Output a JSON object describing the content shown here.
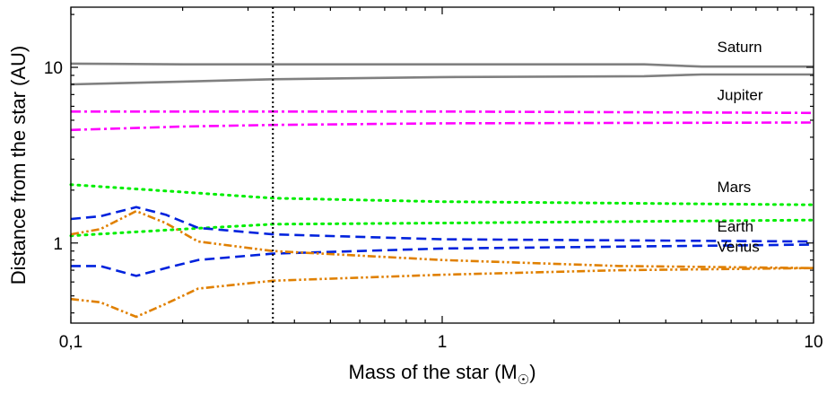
{
  "chart_data": {
    "type": "line",
    "title": "",
    "xlabel": "Mass of the star (M",
    "xlabel_sub": "☉",
    "xlabel_close": ")",
    "ylabel": "Distance from the star (AU)",
    "xscale": "log",
    "yscale": "log",
    "xlim": [
      0.1,
      10
    ],
    "ylim": [
      0.35,
      22
    ],
    "x_ticks": [
      {
        "value": 0.1,
        "label": "0,1"
      },
      {
        "value": 1,
        "label": "1"
      },
      {
        "value": 10,
        "label": "10"
      }
    ],
    "y_ticks": [
      {
        "value": 1,
        "label": "1"
      },
      {
        "value": 10,
        "label": "10"
      }
    ],
    "grid": false,
    "vertical_line": {
      "x": 0.35,
      "style": "dotted",
      "color": "#000000"
    },
    "series": [
      {
        "name": "Saturn",
        "bound": "outer",
        "color": "#808080",
        "dash": "solid",
        "points": [
          [
            0.1,
            10.5
          ],
          [
            0.2,
            10.4
          ],
          [
            1,
            10.4
          ],
          [
            3.5,
            10.4
          ],
          [
            5,
            10.1
          ],
          [
            10,
            10.1
          ]
        ]
      },
      {
        "name": "Saturn",
        "bound": "inner",
        "color": "#808080",
        "dash": "solid",
        "points": [
          [
            0.1,
            8.0
          ],
          [
            0.2,
            8.3
          ],
          [
            0.35,
            8.55
          ],
          [
            1,
            8.8
          ],
          [
            3.5,
            8.9
          ],
          [
            5,
            9.1
          ],
          [
            10,
            9.1
          ]
        ]
      },
      {
        "name": "Jupiter",
        "bound": "outer",
        "color": "#ff00ff",
        "dash": "dashdot",
        "points": [
          [
            0.1,
            5.6
          ],
          [
            1,
            5.6
          ],
          [
            10,
            5.5
          ]
        ]
      },
      {
        "name": "Jupiter",
        "bound": "inner",
        "color": "#ff00ff",
        "dash": "dashdot",
        "points": [
          [
            0.1,
            4.4
          ],
          [
            0.2,
            4.6
          ],
          [
            0.35,
            4.7
          ],
          [
            1,
            4.8
          ],
          [
            10,
            4.85
          ]
        ]
      },
      {
        "name": "Mars",
        "bound": "outer",
        "color": "#00ee00",
        "dash": "dotted",
        "points": [
          [
            0.1,
            2.15
          ],
          [
            0.2,
            1.95
          ],
          [
            0.35,
            1.8
          ],
          [
            1,
            1.72
          ],
          [
            10,
            1.65
          ]
        ]
      },
      {
        "name": "Mars",
        "bound": "inner",
        "color": "#00ee00",
        "dash": "dotted",
        "points": [
          [
            0.1,
            1.1
          ],
          [
            0.2,
            1.2
          ],
          [
            0.35,
            1.28
          ],
          [
            1,
            1.3
          ],
          [
            10,
            1.35
          ]
        ]
      },
      {
        "name": "Earth",
        "bound": "outer",
        "color": "#0022dd",
        "dash": "dashed",
        "points": [
          [
            0.1,
            1.37
          ],
          [
            0.12,
            1.42
          ],
          [
            0.15,
            1.6
          ],
          [
            0.18,
            1.45
          ],
          [
            0.22,
            1.22
          ],
          [
            0.35,
            1.12
          ],
          [
            1,
            1.05
          ],
          [
            10,
            1.02
          ]
        ]
      },
      {
        "name": "Earth",
        "bound": "inner",
        "color": "#0022dd",
        "dash": "dashed",
        "points": [
          [
            0.1,
            0.74
          ],
          [
            0.12,
            0.74
          ],
          [
            0.15,
            0.65
          ],
          [
            0.18,
            0.72
          ],
          [
            0.22,
            0.8
          ],
          [
            0.35,
            0.87
          ],
          [
            1,
            0.93
          ],
          [
            10,
            0.98
          ]
        ]
      },
      {
        "name": "Venus",
        "bound": "outer",
        "color": "#e08000",
        "dash": "dashdotdot",
        "points": [
          [
            0.1,
            1.12
          ],
          [
            0.12,
            1.2
          ],
          [
            0.15,
            1.52
          ],
          [
            0.18,
            1.3
          ],
          [
            0.22,
            1.02
          ],
          [
            0.35,
            0.9
          ],
          [
            1,
            0.8
          ],
          [
            3,
            0.74
          ],
          [
            10,
            0.72
          ]
        ]
      },
      {
        "name": "Venus",
        "bound": "inner",
        "color": "#e08000",
        "dash": "dashdotdot",
        "points": [
          [
            0.1,
            0.48
          ],
          [
            0.12,
            0.46
          ],
          [
            0.15,
            0.38
          ],
          [
            0.18,
            0.45
          ],
          [
            0.22,
            0.55
          ],
          [
            0.35,
            0.61
          ],
          [
            1,
            0.66
          ],
          [
            3,
            0.7
          ],
          [
            10,
            0.72
          ]
        ]
      }
    ],
    "annotations": [
      {
        "text": "Saturn",
        "x": 5.5,
        "y": 12.2
      },
      {
        "text": "Jupiter",
        "x": 5.5,
        "y": 6.5
      },
      {
        "text": "Mars",
        "x": 5.5,
        "y": 1.95
      },
      {
        "text": "Earth",
        "x": 5.5,
        "y": 1.16
      },
      {
        "text": "Venus",
        "x": 5.5,
        "y": 0.89
      }
    ]
  }
}
